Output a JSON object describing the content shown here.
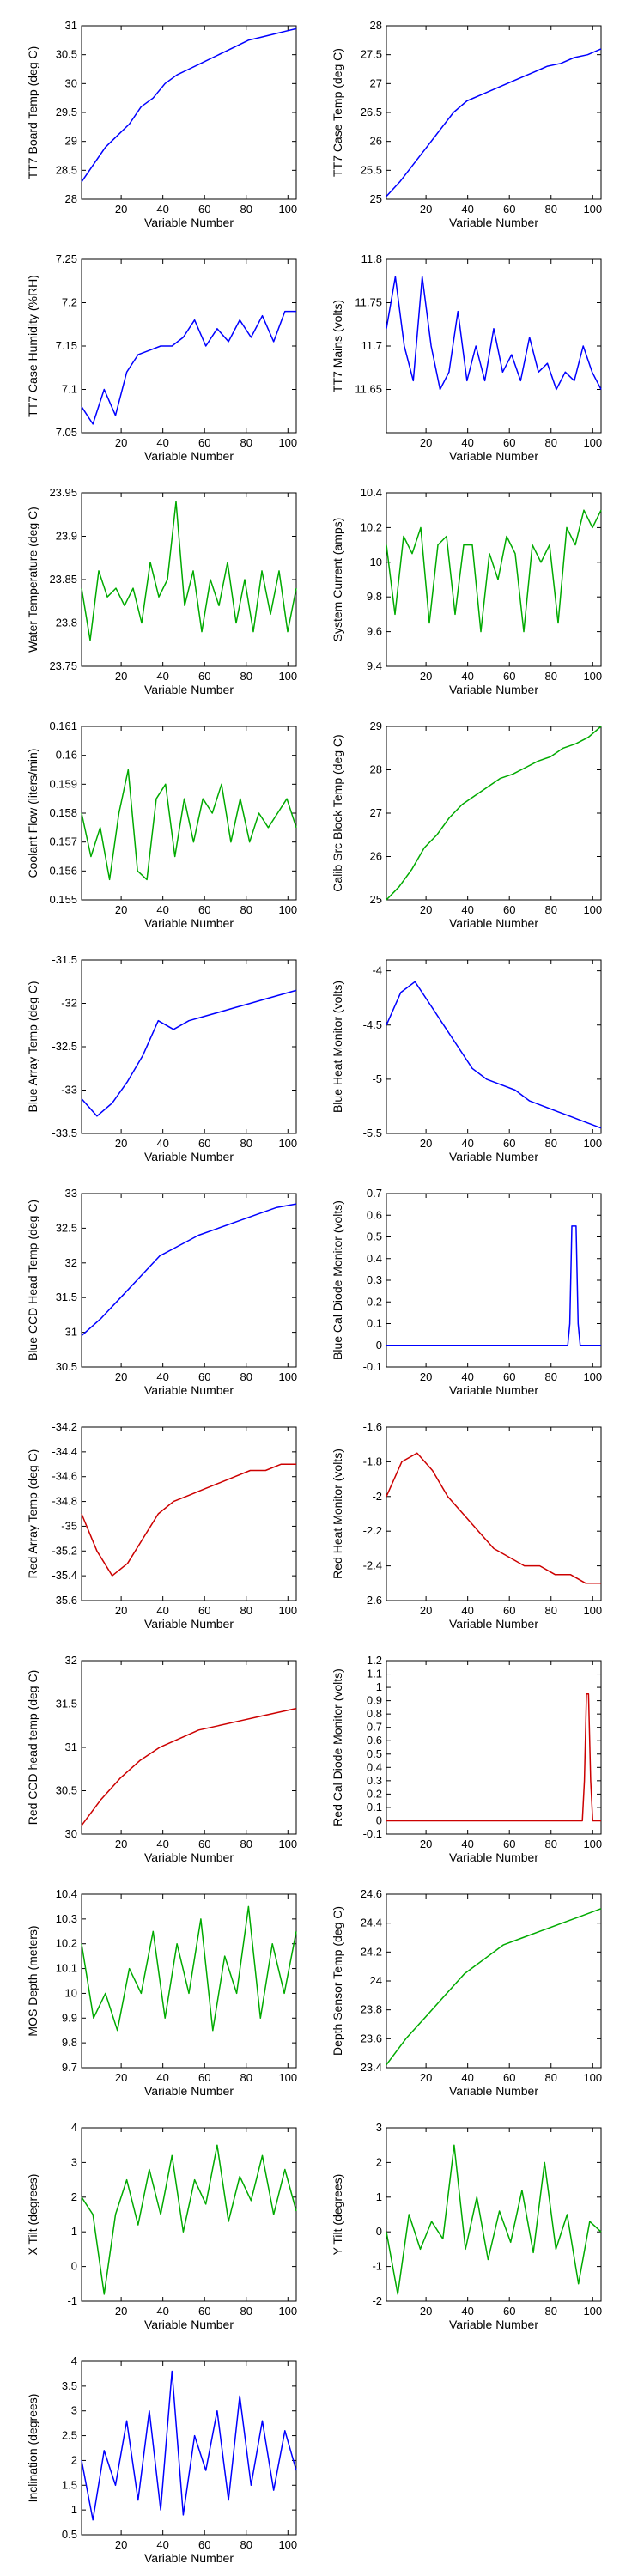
{
  "chart_data": [
    {
      "id": "tt7-board-temp",
      "type": "line",
      "xlabel": "Variable Number",
      "ylabel": "TT7 Board Temp (deg C)",
      "ylim": [
        28,
        31
      ],
      "yticks": [
        "28",
        "28.5",
        "29",
        "29.5",
        "30",
        "30.5",
        "31"
      ],
      "xticks": [
        "20",
        "40",
        "60",
        "80",
        "100"
      ],
      "xlim": [
        1,
        104
      ],
      "color": "#0000ff",
      "series": [
        {
          "values": [
            28.3,
            28.6,
            28.9,
            29.1,
            29.3,
            29.6,
            29.75,
            30.0,
            30.15,
            30.25,
            30.35,
            30.45,
            30.55,
            30.65,
            30.75,
            30.8,
            30.85,
            30.9,
            30.95
          ]
        }
      ]
    },
    {
      "id": "tt7-case-temp",
      "type": "line",
      "xlabel": "Variable Number",
      "ylabel": "TT7 Case Temp (deg C)",
      "ylim": [
        25,
        28
      ],
      "yticks": [
        "25",
        "25.5",
        "26",
        "26.5",
        "27",
        "27.5",
        "28"
      ],
      "xticks": [
        "20",
        "40",
        "60",
        "80",
        "100"
      ],
      "xlim": [
        1,
        104
      ],
      "color": "#0000ff",
      "series": [
        {
          "values": [
            25.05,
            25.3,
            25.6,
            25.9,
            26.2,
            26.5,
            26.7,
            26.8,
            26.9,
            27.0,
            27.1,
            27.2,
            27.3,
            27.35,
            27.45,
            27.5,
            27.6
          ]
        }
      ]
    },
    {
      "id": "tt7-case-humidity",
      "type": "line",
      "xlabel": "Variable Number",
      "ylabel": "TT7 Case Humidity (%RH)",
      "ylim": [
        7.05,
        7.25
      ],
      "yticks": [
        "7.05",
        "7.1",
        "7.15",
        "7.2",
        "7.25"
      ],
      "xticks": [
        "20",
        "40",
        "60",
        "80",
        "100"
      ],
      "xlim": [
        1,
        104
      ],
      "color": "#0000ff",
      "series": [
        {
          "values": [
            7.08,
            7.06,
            7.1,
            7.07,
            7.12,
            7.14,
            7.145,
            7.15,
            7.15,
            7.16,
            7.18,
            7.15,
            7.17,
            7.155,
            7.18,
            7.16,
            7.185,
            7.155,
            7.19,
            7.19
          ]
        }
      ]
    },
    {
      "id": "tt7-mains",
      "type": "line",
      "xlabel": "Variable Number",
      "ylabel": "TT7 Mains (volts)",
      "ylim": [
        11.6,
        11.8
      ],
      "yticks": [
        "11.65",
        "11.7",
        "11.75",
        "11.8"
      ],
      "xticks": [
        "20",
        "40",
        "60",
        "80",
        "100"
      ],
      "xlim": [
        1,
        104
      ],
      "color": "#0000ff",
      "series": [
        {
          "values": [
            11.72,
            11.78,
            11.7,
            11.66,
            11.78,
            11.7,
            11.65,
            11.67,
            11.74,
            11.66,
            11.7,
            11.66,
            11.72,
            11.67,
            11.69,
            11.66,
            11.71,
            11.67,
            11.68,
            11.65,
            11.67,
            11.66,
            11.7,
            11.67,
            11.65
          ]
        }
      ]
    },
    {
      "id": "water-temperature",
      "type": "line",
      "xlabel": "Variable Number",
      "ylabel": "Water Temperature (deg C)",
      "ylim": [
        23.75,
        23.95
      ],
      "yticks": [
        "23.75",
        "23.8",
        "23.85",
        "23.9",
        "23.95"
      ],
      "xticks": [
        "20",
        "40",
        "60",
        "80",
        "100"
      ],
      "xlim": [
        1,
        104
      ],
      "color": "#00aa00",
      "series": [
        {
          "values": [
            23.84,
            23.78,
            23.86,
            23.83,
            23.84,
            23.82,
            23.84,
            23.8,
            23.87,
            23.83,
            23.85,
            23.94,
            23.82,
            23.86,
            23.79,
            23.85,
            23.82,
            23.87,
            23.8,
            23.85,
            23.79,
            23.86,
            23.81,
            23.86,
            23.79,
            23.84
          ]
        }
      ]
    },
    {
      "id": "system-current",
      "type": "line",
      "xlabel": "Variable Number",
      "ylabel": "System Current (amps)",
      "ylim": [
        9.4,
        10.4
      ],
      "yticks": [
        "9.4",
        "9.6",
        "9.8",
        "10",
        "10.2",
        "10.4"
      ],
      "xticks": [
        "20",
        "40",
        "60",
        "80",
        "100"
      ],
      "xlim": [
        1,
        104
      ],
      "color": "#00aa00",
      "series": [
        {
          "values": [
            10.1,
            9.7,
            10.15,
            10.05,
            10.2,
            9.65,
            10.1,
            10.15,
            9.7,
            10.1,
            10.1,
            9.6,
            10.05,
            9.9,
            10.15,
            10.05,
            9.6,
            10.1,
            10.0,
            10.1,
            9.65,
            10.2,
            10.1,
            10.3,
            10.2,
            10.3
          ]
        }
      ]
    },
    {
      "id": "coolant-flow",
      "type": "line",
      "xlabel": "Variable Number",
      "ylabel": "Coolant Flow (liters/min)",
      "ylim": [
        0.155,
        0.161
      ],
      "yticks": [
        "0.155",
        "0.156",
        "0.157",
        "0.158",
        "0.159",
        "0.16",
        "0.161"
      ],
      "xticks": [
        "20",
        "40",
        "60",
        "80",
        "100"
      ],
      "xlim": [
        1,
        104
      ],
      "color": "#00aa00",
      "series": [
        {
          "values": [
            0.158,
            0.1565,
            0.1575,
            0.1557,
            0.158,
            0.1595,
            0.156,
            0.1557,
            0.1585,
            0.159,
            0.1565,
            0.1585,
            0.157,
            0.1585,
            0.158,
            0.159,
            0.157,
            0.1585,
            0.157,
            0.158,
            0.1575,
            0.158,
            0.1585,
            0.1575
          ]
        }
      ]
    },
    {
      "id": "calib-src-block-temp",
      "type": "line",
      "xlabel": "Variable Number",
      "ylabel": "Calib Src Block Temp (deg C)",
      "ylim": [
        25,
        29
      ],
      "yticks": [
        "25",
        "26",
        "27",
        "28",
        "29"
      ],
      "xticks": [
        "20",
        "40",
        "60",
        "80",
        "100"
      ],
      "xlim": [
        1,
        104
      ],
      "color": "#00aa00",
      "series": [
        {
          "values": [
            25.0,
            25.3,
            25.7,
            26.2,
            26.5,
            26.9,
            27.2,
            27.4,
            27.6,
            27.8,
            27.9,
            28.05,
            28.2,
            28.3,
            28.5,
            28.6,
            28.75,
            29.0
          ]
        }
      ]
    },
    {
      "id": "blue-array-temp",
      "type": "line",
      "xlabel": "Variable Number",
      "ylabel": "Blue Array Temp (deg C)",
      "ylim": [
        -33.5,
        -31.5
      ],
      "yticks": [
        "-33.5",
        "-33",
        "-32.5",
        "-32",
        "-31.5"
      ],
      "xticks": [
        "20",
        "40",
        "60",
        "80",
        "100"
      ],
      "xlim": [
        1,
        104
      ],
      "color": "#0000ff",
      "series": [
        {
          "values": [
            -33.1,
            -33.3,
            -33.15,
            -32.9,
            -32.6,
            -32.2,
            -32.3,
            -32.2,
            -32.15,
            -32.1,
            -32.05,
            -32.0,
            -31.95,
            -31.9,
            -31.85
          ]
        }
      ]
    },
    {
      "id": "blue-heat-monitor",
      "type": "line",
      "xlabel": "Variable Number",
      "ylabel": "Blue Heat Monitor (volts)",
      "ylim": [
        -5.5,
        -3.9
      ],
      "yticks": [
        "-5.5",
        "-5",
        "-4.5",
        "-4"
      ],
      "xticks": [
        "20",
        "40",
        "60",
        "80",
        "100"
      ],
      "xlim": [
        1,
        104
      ],
      "color": "#0000ff",
      "series": [
        {
          "values": [
            -4.5,
            -4.2,
            -4.1,
            -4.3,
            -4.5,
            -4.7,
            -4.9,
            -5.0,
            -5.05,
            -5.1,
            -5.2,
            -5.25,
            -5.3,
            -5.35,
            -5.4,
            -5.45
          ]
        }
      ]
    },
    {
      "id": "blue-ccd-head-temp",
      "type": "line",
      "xlabel": "Variable Number",
      "ylabel": "Blue CCD Head Temp (deg C)",
      "ylim": [
        30.5,
        33
      ],
      "yticks": [
        "30.5",
        "31",
        "31.5",
        "32",
        "32.5",
        "33"
      ],
      "xticks": [
        "20",
        "40",
        "60",
        "80",
        "100"
      ],
      "xlim": [
        1,
        104
      ],
      "color": "#0000ff",
      "series": [
        {
          "values": [
            30.95,
            31.2,
            31.5,
            31.8,
            32.1,
            32.25,
            32.4,
            32.5,
            32.6,
            32.7,
            32.8,
            32.85
          ]
        }
      ]
    },
    {
      "id": "blue-cal-diode-monitor",
      "type": "line",
      "xlabel": "Variable Number",
      "ylabel": "Blue Cal Diode Monitor (volts)",
      "ylim": [
        -0.1,
        0.7
      ],
      "yticks": [
        "-0.1",
        "0",
        "0.1",
        "0.2",
        "0.3",
        "0.4",
        "0.5",
        "0.6",
        "0.7"
      ],
      "xticks": [
        "20",
        "40",
        "60",
        "80",
        "100"
      ],
      "xlim": [
        1,
        104
      ],
      "color": "#0000ff",
      "series": [
        {
          "x": [
            1,
            88,
            89,
            90,
            91,
            92,
            93,
            94,
            104
          ],
          "values": [
            0,
            0,
            0.1,
            0.55,
            0.55,
            0.55,
            0.1,
            0,
            0
          ]
        }
      ]
    },
    {
      "id": "red-array-temp",
      "type": "line",
      "xlabel": "Variable Number",
      "ylabel": "Red Array Temp (deg C)",
      "ylim": [
        -35.6,
        -34.2
      ],
      "yticks": [
        "-35.6",
        "-35.4",
        "-35.2",
        "-35",
        "-34.8",
        "-34.6",
        "-34.4",
        "-34.2"
      ],
      "xticks": [
        "20",
        "40",
        "60",
        "80",
        "100"
      ],
      "xlim": [
        1,
        104
      ],
      "color": "#cc0000",
      "series": [
        {
          "values": [
            -34.9,
            -35.2,
            -35.4,
            -35.3,
            -35.1,
            -34.9,
            -34.8,
            -34.75,
            -34.7,
            -34.65,
            -34.6,
            -34.55,
            -34.55,
            -34.5,
            -34.5
          ]
        }
      ]
    },
    {
      "id": "red-heat-monitor",
      "type": "line",
      "xlabel": "Variable Number",
      "ylabel": "Red Heat Monitor (volts)",
      "ylim": [
        -2.6,
        -1.6
      ],
      "yticks": [
        "-2.6",
        "-2.4",
        "-2.2",
        "-2",
        "-1.8",
        "-1.6"
      ],
      "xticks": [
        "20",
        "40",
        "60",
        "80",
        "100"
      ],
      "xlim": [
        1,
        104
      ],
      "color": "#cc0000",
      "series": [
        {
          "values": [
            -2.0,
            -1.8,
            -1.75,
            -1.85,
            -2.0,
            -2.1,
            -2.2,
            -2.3,
            -2.35,
            -2.4,
            -2.4,
            -2.45,
            -2.45,
            -2.5,
            -2.5
          ]
        }
      ]
    },
    {
      "id": "red-ccd-head-temp",
      "type": "line",
      "xlabel": "Variable Number",
      "ylabel": "Red CCD head temp (deg C)",
      "ylim": [
        30,
        32
      ],
      "yticks": [
        "30",
        "30.5",
        "31",
        "31.5",
        "32"
      ],
      "xticks": [
        "20",
        "40",
        "60",
        "80",
        "100"
      ],
      "xlim": [
        1,
        104
      ],
      "color": "#cc0000",
      "series": [
        {
          "values": [
            30.1,
            30.4,
            30.65,
            30.85,
            31.0,
            31.1,
            31.2,
            31.25,
            31.3,
            31.35,
            31.4,
            31.45
          ]
        }
      ]
    },
    {
      "id": "red-cal-diode-monitor",
      "type": "line",
      "xlabel": "Variable Number",
      "ylabel": "Red Cal Diode Monitor (volts)",
      "ylim": [
        -0.1,
        1.2
      ],
      "yticks": [
        "-0.1",
        "0",
        "0.1",
        "0.2",
        "0.3",
        "0.4",
        "0.5",
        "0.6",
        "0.7",
        "0.8",
        "0.9",
        "1",
        "1.1",
        "1.2"
      ],
      "xticks": [
        "20",
        "40",
        "60",
        "80",
        "100"
      ],
      "xlim": [
        1,
        104
      ],
      "color": "#cc0000",
      "series": [
        {
          "x": [
            1,
            95,
            96,
            97,
            98,
            99,
            100,
            104
          ],
          "values": [
            0,
            0,
            0.3,
            0.95,
            0.95,
            0.3,
            0,
            0
          ]
        }
      ]
    },
    {
      "id": "mos-depth",
      "type": "line",
      "xlabel": "Variable Number",
      "ylabel": "MOS Depth  (meters)",
      "ylim": [
        9.7,
        10.4
      ],
      "yticks": [
        "9.7",
        "9.8",
        "9.9",
        "10",
        "10.1",
        "10.2",
        "10.3",
        "10.4"
      ],
      "xticks": [
        "20",
        "40",
        "60",
        "80",
        "100"
      ],
      "xlim": [
        1,
        104
      ],
      "color": "#00aa00",
      "series": [
        {
          "values": [
            10.2,
            9.9,
            10.0,
            9.85,
            10.1,
            10.0,
            10.25,
            9.9,
            10.2,
            10.0,
            10.3,
            9.85,
            10.15,
            10.0,
            10.35,
            9.9,
            10.2,
            10.0,
            10.25
          ]
        }
      ]
    },
    {
      "id": "depth-sensor-temp",
      "type": "line",
      "xlabel": "Variable Number",
      "ylabel": "Depth Sensor Temp (deg C)",
      "ylim": [
        23.4,
        24.6
      ],
      "yticks": [
        "23.4",
        "23.6",
        "23.8",
        "24",
        "24.2",
        "24.4",
        "24.6"
      ],
      "xticks": [
        "20",
        "40",
        "60",
        "80",
        "100"
      ],
      "xlim": [
        1,
        104
      ],
      "color": "#00aa00",
      "series": [
        {
          "values": [
            23.42,
            23.6,
            23.75,
            23.9,
            24.05,
            24.15,
            24.25,
            24.3,
            24.35,
            24.4,
            24.45,
            24.5
          ]
        }
      ]
    },
    {
      "id": "x-tilt",
      "type": "line",
      "xlabel": "Variable Number",
      "ylabel": "X Tilt  (degrees)",
      "ylim": [
        -1,
        4
      ],
      "yticks": [
        "-1",
        "0",
        "1",
        "2",
        "3",
        "4"
      ],
      "xticks": [
        "20",
        "40",
        "60",
        "80",
        "100"
      ],
      "xlim": [
        1,
        104
      ],
      "color": "#00aa00",
      "series": [
        {
          "values": [
            2.0,
            1.5,
            -0.8,
            1.5,
            2.5,
            1.2,
            2.8,
            1.5,
            3.2,
            1.0,
            2.5,
            1.8,
            3.5,
            1.3,
            2.6,
            1.9,
            3.2,
            1.5,
            2.8,
            1.6
          ]
        }
      ]
    },
    {
      "id": "y-tilt",
      "type": "line",
      "xlabel": "Variable Number",
      "ylabel": "Y Tilt  (degrees)",
      "ylim": [
        -2,
        3
      ],
      "yticks": [
        "-2",
        "-1",
        "0",
        "1",
        "2",
        "3"
      ],
      "xticks": [
        "20",
        "40",
        "60",
        "80",
        "100"
      ],
      "xlim": [
        1,
        104
      ],
      "color": "#00aa00",
      "series": [
        {
          "values": [
            0.0,
            -1.8,
            0.5,
            -0.5,
            0.3,
            -0.2,
            2.5,
            -0.5,
            1.0,
            -0.8,
            0.6,
            -0.3,
            1.2,
            -0.6,
            2.0,
            -0.5,
            0.5,
            -1.5,
            0.3,
            0.0
          ]
        }
      ]
    },
    {
      "id": "inclination",
      "type": "line",
      "xlabel": "Variable Number",
      "ylabel": "Inclination  (degrees)",
      "ylim": [
        0.5,
        4
      ],
      "yticks": [
        "0.5",
        "1",
        "1.5",
        "2",
        "2.5",
        "3",
        "3.5",
        "4"
      ],
      "xticks": [
        "20",
        "40",
        "60",
        "80",
        "100"
      ],
      "xlim": [
        1,
        104
      ],
      "color": "#0000ff",
      "series": [
        {
          "values": [
            2.0,
            0.8,
            2.2,
            1.5,
            2.8,
            1.2,
            3.0,
            1.0,
            3.8,
            0.9,
            2.5,
            1.8,
            3.0,
            1.2,
            3.3,
            1.5,
            2.8,
            1.4,
            2.6,
            1.8
          ]
        }
      ]
    }
  ]
}
